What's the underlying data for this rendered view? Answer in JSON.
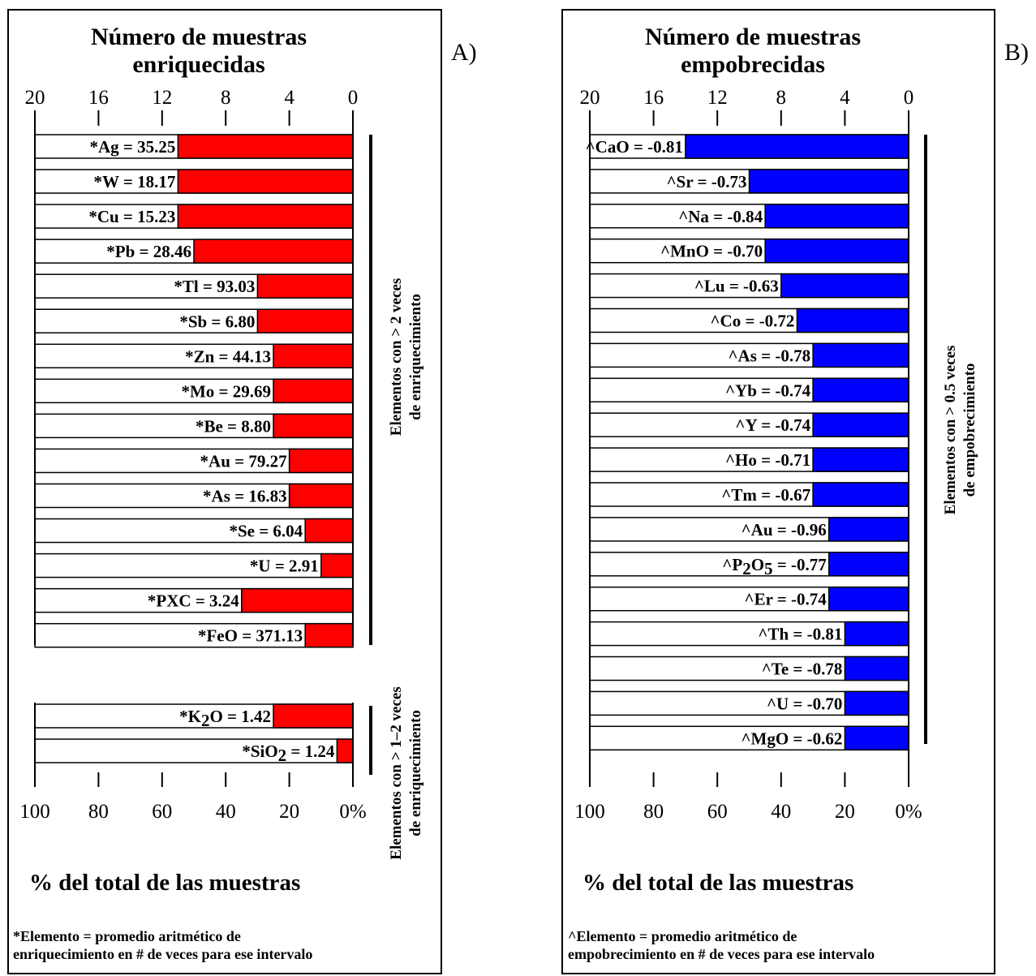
{
  "chart_data": [
    {
      "type": "bar",
      "panel_label": "A)",
      "title_lines": [
        "Número de muestras",
        "enriquecidas"
      ],
      "top_ticks": [
        "20",
        "16",
        "12",
        "8",
        "4",
        "0"
      ],
      "bottom_ticks": [
        "100",
        "80",
        "60",
        "40",
        "20",
        "0%"
      ],
      "xlabel": "% del total de las muestras",
      "color": "#ff0000",
      "xlim": [
        0,
        20
      ],
      "orientation": "horizontal-reversed",
      "groups": [
        {
          "note_lines": [
            "Elementos con > 2 veces",
            "de enriquecimiento"
          ],
          "bars": [
            {
              "label": "*Ag = 35.25",
              "value": 11
            },
            {
              "label": "*W = 18.17",
              "value": 11
            },
            {
              "label": "*Cu = 15.23",
              "value": 11
            },
            {
              "label": "*Pb = 28.46",
              "value": 10
            },
            {
              "label": "*Tl = 93.03",
              "value": 6
            },
            {
              "label": "*Sb = 6.80",
              "value": 6
            },
            {
              "label": "*Zn = 44.13",
              "value": 5
            },
            {
              "label": "*Mo = 29.69",
              "value": 5
            },
            {
              "label": "*Be = 8.80",
              "value": 5
            },
            {
              "label": "*Au = 79.27",
              "value": 4
            },
            {
              "label": "*As = 16.83",
              "value": 4
            },
            {
              "label": "*Se = 6.04",
              "value": 3
            },
            {
              "label": "*U = 2.91",
              "value": 2
            },
            {
              "label": "*PXC = 3.24",
              "value": 7
            },
            {
              "label": "*FeO = 371.13",
              "value": 3
            }
          ]
        },
        {
          "note_lines": [
            "Elementos con > 1–2 veces",
            "de enriquecimiento"
          ],
          "bars": [
            {
              "label_main": "*K",
              "label_sub": "2",
              "label_rest": "O = 1.42",
              "value": 5
            },
            {
              "label_main": "*SiO",
              "label_sub": "2",
              "label_rest": " = 1.24",
              "value": 1
            }
          ]
        }
      ],
      "footnote_lines": [
        "*Elemento = promedio aritmético de",
        "enriquecimiento en # de veces para ese intervalo"
      ]
    },
    {
      "type": "bar",
      "panel_label": "B)",
      "title_lines": [
        "Número de muestras",
        "empobrecidas"
      ],
      "top_ticks": [
        "20",
        "16",
        "12",
        "8",
        "4",
        "0"
      ],
      "bottom_ticks": [
        "100",
        "80",
        "60",
        "40",
        "20",
        "0%"
      ],
      "xlabel": "% del total de las muestras",
      "color": "#0000ff",
      "xlim": [
        0,
        20
      ],
      "orientation": "horizontal-reversed",
      "groups": [
        {
          "note_lines": [
            "Elementos con > 0.5 veces",
            "de empobrecimiento"
          ],
          "bars": [
            {
              "label": "^CaO = -0.81",
              "value": 14
            },
            {
              "label": "^Sr = -0.73",
              "value": 10
            },
            {
              "label": "^Na = -0.84",
              "value": 9
            },
            {
              "label": "^MnO = -0.70",
              "value": 9
            },
            {
              "label": "^Lu = -0.63",
              "value": 8
            },
            {
              "label": "^Co = -0.72",
              "value": 7
            },
            {
              "label": "^As = -0.78",
              "value": 6
            },
            {
              "label": "^Yb = -0.74",
              "value": 6
            },
            {
              "label": "^Y = -0.74",
              "value": 6
            },
            {
              "label": "^Ho = -0.71",
              "value": 6
            },
            {
              "label": "^Tm = -0.67",
              "value": 6
            },
            {
              "label": "^Au = -0.96",
              "value": 5
            },
            {
              "label_main": "^P",
              "label_sub": "2",
              "label_mid": "O",
              "label_sub2": "5",
              "label_rest": " = -0.77",
              "value": 5
            },
            {
              "label": "^Er = -0.74",
              "value": 5
            },
            {
              "label": "^Th = -0.81",
              "value": 4
            },
            {
              "label": "^Te = -0.78",
              "value": 4
            },
            {
              "label": "^U = -0.70",
              "value": 4
            },
            {
              "label": "^MgO = -0.62",
              "value": 4
            }
          ]
        }
      ],
      "footnote_lines": [
        "^Elemento = promedio aritmético de",
        "empobrecimiento en # de veces para ese intervalo"
      ]
    }
  ]
}
